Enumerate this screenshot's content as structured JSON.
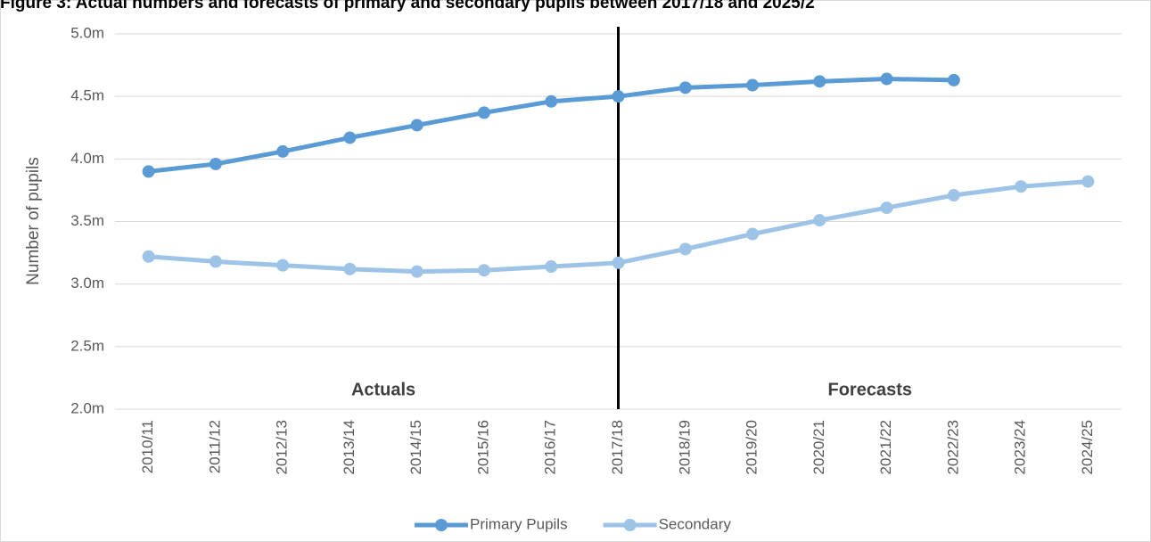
{
  "chart_data": {
    "type": "line",
    "title": "Figure 3: Actual numbers and forecasts of primary and secondary pupils between 2017/18 and 2025/2",
    "y_label": "Number of pupils",
    "categories": [
      "2010/11",
      "2011/12",
      "2012/13",
      "2013/14",
      "2014/15",
      "2015/16",
      "2016/17",
      "2017/18",
      "2018/19",
      "2019/20",
      "2020/21",
      "2021/22",
      "2022/23",
      "2023/24",
      "2024/25"
    ],
    "series": [
      {
        "name": "Primary Pupils",
        "color": "#5b9bd5",
        "values": [
          3.9,
          3.96,
          4.06,
          4.17,
          4.27,
          4.37,
          4.46,
          4.5,
          4.57,
          4.59,
          4.62,
          4.64,
          4.63,
          null,
          null
        ]
      },
      {
        "name": "Secondary",
        "color": "#9dc3e6",
        "values": [
          3.22,
          3.18,
          3.15,
          3.12,
          3.1,
          3.11,
          3.14,
          3.17,
          3.28,
          3.4,
          3.51,
          3.61,
          3.71,
          3.78,
          3.82
        ]
      }
    ],
    "ylim": [
      2.0,
      5.0
    ],
    "yticks": [
      {
        "value": 2.0,
        "label": "2.0m"
      },
      {
        "value": 2.5,
        "label": "2.5m"
      },
      {
        "value": 3.0,
        "label": "3.0m"
      },
      {
        "value": 3.5,
        "label": "3.5m"
      },
      {
        "value": 4.0,
        "label": "4.0m"
      },
      {
        "value": 4.5,
        "label": "4.5m"
      },
      {
        "value": 5.0,
        "label": "5.0m"
      }
    ],
    "grid": true,
    "divider": "2017/18",
    "annotations": [
      "Actuals",
      "Forecasts"
    ],
    "legend": "bottom"
  }
}
